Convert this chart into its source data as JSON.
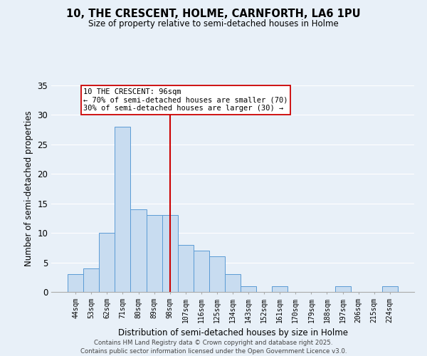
{
  "title_line1": "10, THE CRESCENT, HOLME, CARNFORTH, LA6 1PU",
  "title_line2": "Size of property relative to semi-detached houses in Holme",
  "xlabel": "Distribution of semi-detached houses by size in Holme",
  "ylabel": "Number of semi-detached properties",
  "bar_labels": [
    "44sqm",
    "53sqm",
    "62sqm",
    "71sqm",
    "80sqm",
    "89sqm",
    "98sqm",
    "107sqm",
    "116sqm",
    "125sqm",
    "134sqm",
    "143sqm",
    "152sqm",
    "161sqm",
    "170sqm",
    "179sqm",
    "188sqm",
    "197sqm",
    "206sqm",
    "215sqm",
    "224sqm"
  ],
  "bar_values": [
    3,
    4,
    10,
    28,
    14,
    13,
    13,
    8,
    7,
    6,
    3,
    1,
    0,
    1,
    0,
    0,
    0,
    1,
    0,
    0,
    1
  ],
  "bar_color": "#c8dcf0",
  "bar_edge_color": "#5b9bd5",
  "bar_width": 1.0,
  "vline_x_index": 6,
  "vline_color": "#cc0000",
  "ylim": [
    0,
    35
  ],
  "yticks": [
    0,
    5,
    10,
    15,
    20,
    25,
    30,
    35
  ],
  "annotation_title": "10 THE CRESCENT: 96sqm",
  "annotation_line1": "← 70% of semi-detached houses are smaller (70)",
  "annotation_line2": "30% of semi-detached houses are larger (30) →",
  "annotation_box_color": "#ffffff",
  "annotation_box_edge": "#cc0000",
  "footer_line1": "Contains HM Land Registry data © Crown copyright and database right 2025.",
  "footer_line2": "Contains public sector information licensed under the Open Government Licence v3.0.",
  "background_color": "#e8f0f8",
  "plot_background": "#e8f0f8",
  "grid_color": "#ffffff"
}
